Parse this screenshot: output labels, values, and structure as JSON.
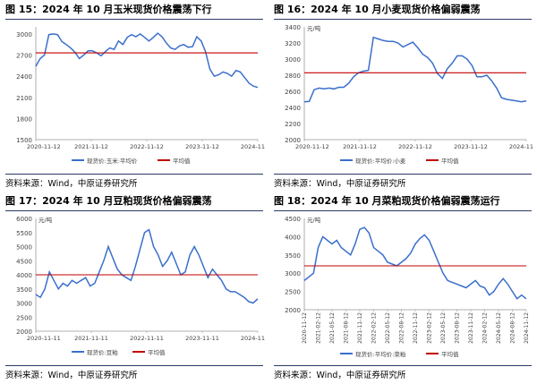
{
  "chart_data": [
    {
      "type": "line",
      "title": "图 15：2024 年 10 月玉米现货价格震荡下行",
      "unit": "",
      "x_ticks": [
        "2020-11-12",
        "2021-11-12",
        "2022-11-12",
        "2023-11-12",
        "2024-11"
      ],
      "ylim": [
        1500,
        3100
      ],
      "yticks": [
        1500,
        1800,
        2100,
        2400,
        2700,
        3000
      ],
      "series": [
        {
          "name": "现货价:玉米:平均价",
          "color": "#3a6fcc",
          "values": [
            2540,
            2650,
            2700,
            2990,
            3000,
            2990,
            2890,
            2850,
            2800,
            2740,
            2650,
            2700,
            2760,
            2760,
            2730,
            2690,
            2750,
            2800,
            2780,
            2900,
            2850,
            2950,
            2990,
            2960,
            3000,
            2950,
            2900,
            2950,
            3010,
            2960,
            2870,
            2800,
            2780,
            2830,
            2850,
            2810,
            2820,
            2960,
            2900,
            2750,
            2500,
            2400,
            2420,
            2460,
            2440,
            2400,
            2480,
            2460,
            2380,
            2300,
            2260,
            2240
          ]
        },
        {
          "name": "平均值",
          "color": "#c00000",
          "values": [
            2730,
            2730
          ]
        }
      ],
      "source": "资料来源：Wind，中原证券研究所"
    },
    {
      "type": "line",
      "title": "图 16：2024 年 10 月小麦现货价格偏弱震荡",
      "unit": "元/吨",
      "x_ticks": [
        "2020-11-12",
        "2021-11-12",
        "2022-11-12",
        "2023-11-12",
        "2024-11"
      ],
      "ylim": [
        2000,
        3400
      ],
      "yticks": [
        2000,
        2200,
        2400,
        2600,
        2800,
        3000,
        3200,
        3400
      ],
      "series": [
        {
          "name": "现货价:平均价:小麦",
          "color": "#3a6fcc",
          "values": [
            2470,
            2475,
            2620,
            2640,
            2630,
            2640,
            2630,
            2650,
            2650,
            2700,
            2780,
            2830,
            2850,
            2860,
            3270,
            3250,
            3230,
            3220,
            3220,
            3200,
            3150,
            3180,
            3210,
            3140,
            3060,
            3020,
            2950,
            2820,
            2760,
            2880,
            2950,
            3040,
            3040,
            3000,
            2920,
            2780,
            2780,
            2800,
            2730,
            2640,
            2520,
            2500,
            2490,
            2480,
            2470,
            2480
          ]
        },
        {
          "name": "平均值",
          "color": "#c00000",
          "values": [
            2830,
            2830
          ]
        }
      ],
      "source": "资料来源：Wind，中原证券研究所"
    },
    {
      "type": "line",
      "title": "图 17：2024 年 10 月豆粕现货价格偏弱震荡",
      "unit": "元/吨",
      "x_ticks": [
        "2020-11-11",
        "2021-11-11",
        "2022-11-11",
        "2023-11-11",
        "2024-11"
      ],
      "ylim": [
        2000,
        6000
      ],
      "yticks": [
        2000,
        2500,
        3000,
        3500,
        4000,
        4500,
        5000,
        5500,
        6000
      ],
      "series": [
        {
          "name": "现货价:豆粕",
          "color": "#3a6fcc",
          "values": [
            3300,
            3200,
            3500,
            4100,
            3800,
            3500,
            3700,
            3600,
            3800,
            3700,
            3800,
            3900,
            3600,
            3700,
            4100,
            4500,
            5000,
            4600,
            4200,
            4000,
            3900,
            3800,
            4300,
            4900,
            5500,
            5600,
            5000,
            4700,
            4300,
            4500,
            4800,
            4400,
            4000,
            4100,
            4700,
            5000,
            4700,
            4300,
            3900,
            4200,
            4000,
            3800,
            3500,
            3400,
            3400,
            3300,
            3200,
            3050,
            3000,
            3150
          ]
        },
        {
          "name": "平均值",
          "color": "#c00000",
          "values": [
            4000,
            4000
          ]
        }
      ],
      "source": "资料来源：Wind，中原证券研究所"
    },
    {
      "type": "line",
      "title": "图 18：2024 年 10 月菜粕现货价格偏弱震荡运行",
      "unit": "元/吨",
      "x_ticks": [
        "2020-11-12",
        "2021-02-12",
        "2021-05-12",
        "2021-08-12",
        "2021-11-12",
        "2022-02-12",
        "2022-05-12",
        "2022-08-12",
        "2022-11-12",
        "2023-02-12",
        "2023-05-12",
        "2023-08-12",
        "2023-11-12",
        "2024-02-12",
        "2024-05-12",
        "2024-08-12",
        "2024-11-12"
      ],
      "ylim": [
        2000,
        4500
      ],
      "yticks": [
        2000,
        2500,
        3000,
        3500,
        4000,
        4500
      ],
      "series": [
        {
          "name": "现货价:平均价:菜粕",
          "color": "#3a6fcc",
          "values": [
            2800,
            2900,
            3000,
            3700,
            4000,
            3900,
            3800,
            3900,
            3700,
            3600,
            3500,
            3800,
            4200,
            4250,
            4100,
            3700,
            3600,
            3500,
            3300,
            3250,
            3200,
            3300,
            3400,
            3550,
            3800,
            3950,
            4050,
            3900,
            3600,
            3300,
            3000,
            2800,
            2750,
            2700,
            2650,
            2600,
            2700,
            2800,
            2650,
            2600,
            2400,
            2500,
            2700,
            2850,
            2700,
            2500,
            2300,
            2400,
            2300
          ]
        },
        {
          "name": "平均值",
          "color": "#c00000",
          "values": [
            3200,
            3200
          ]
        }
      ],
      "source": "资料来源：Wind，中原证券研究所"
    }
  ]
}
